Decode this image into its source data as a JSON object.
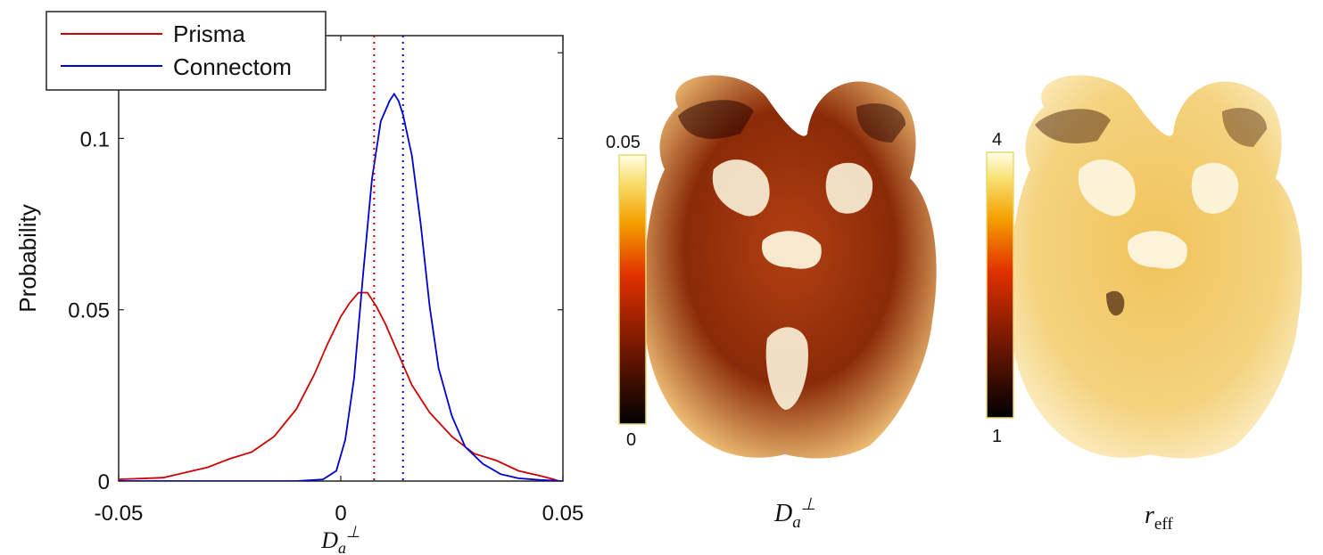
{
  "chart_data": [
    {
      "type": "line",
      "title": "",
      "xlabel": "D_a^⊥",
      "ylabel": "Probability",
      "xlim": [
        -0.05,
        0.05
      ],
      "ylim": [
        0,
        0.13
      ],
      "x_tick_labels": [
        "-0.05",
        "0",
        "0.05"
      ],
      "y_tick_labels": [
        "0",
        "0.05",
        "0.1"
      ],
      "legend_placement": "top-left",
      "series": [
        {
          "name": "Prisma",
          "color": "#cc0000",
          "x": [
            -0.05,
            -0.04,
            -0.03,
            -0.025,
            -0.02,
            -0.015,
            -0.01,
            -0.006,
            -0.003,
            0,
            0.002,
            0.004,
            0.006,
            0.008,
            0.01,
            0.013,
            0.016,
            0.02,
            0.025,
            0.03,
            0.035,
            0.04,
            0.045,
            0.048,
            0.049
          ],
          "y": [
            0.0005,
            0.001,
            0.004,
            0.0065,
            0.0085,
            0.013,
            0.021,
            0.031,
            0.04,
            0.048,
            0.052,
            0.055,
            0.055,
            0.051,
            0.046,
            0.037,
            0.028,
            0.02,
            0.013,
            0.008,
            0.006,
            0.003,
            0.0015,
            0.0005,
            0.0
          ]
        },
        {
          "name": "Connectom",
          "color": "#0000cc",
          "x": [
            -0.05,
            -0.01,
            -0.004,
            -0.001,
            0.001,
            0.003,
            0.005,
            0.007,
            0.009,
            0.011,
            0.012,
            0.013,
            0.014,
            0.016,
            0.018,
            0.02,
            0.022,
            0.025,
            0.028,
            0.032,
            0.036,
            0.04,
            0.045,
            0.05
          ],
          "y": [
            0.0,
            0.0,
            0.0005,
            0.003,
            0.012,
            0.03,
            0.06,
            0.088,
            0.105,
            0.111,
            0.113,
            0.111,
            0.107,
            0.095,
            0.075,
            0.051,
            0.033,
            0.019,
            0.01,
            0.005,
            0.002,
            0.0008,
            0.0003,
            0.0
          ]
        }
      ],
      "vlines": [
        {
          "x": 0.0075,
          "color": "#cc0000",
          "style": "dotted"
        },
        {
          "x": 0.014,
          "color": "#0000cc",
          "style": "dotted"
        }
      ]
    },
    {
      "type": "heatmap",
      "title": "D_a^⊥",
      "colorbar": {
        "min_label": "0",
        "max_label": "0.05",
        "colormap": "hot"
      }
    },
    {
      "type": "heatmap",
      "title": "r_eff",
      "colorbar": {
        "min_label": "1",
        "max_label": "4",
        "colormap": "hot"
      }
    }
  ]
}
